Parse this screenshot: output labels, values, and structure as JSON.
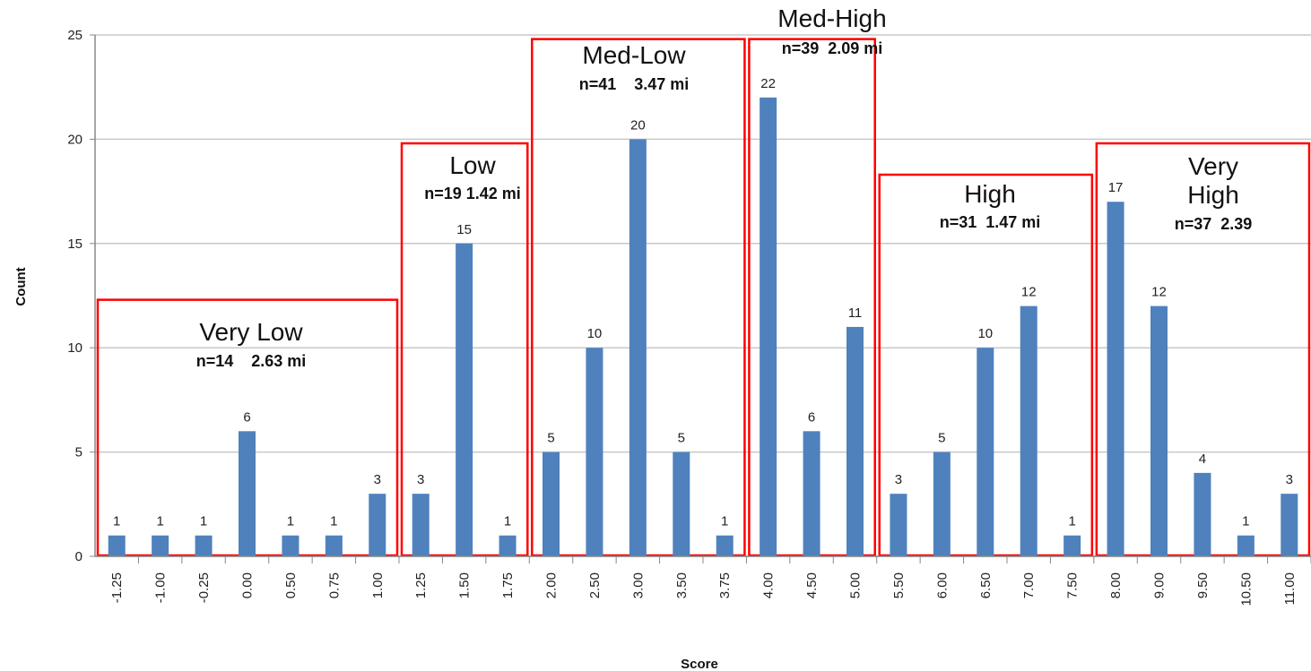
{
  "chart_data": {
    "type": "bar",
    "xlabel": "Score",
    "ylabel": "Count",
    "ylim": [
      0,
      25
    ],
    "yticks": [
      0,
      5,
      10,
      15,
      20,
      25
    ],
    "grid": "horizontal",
    "bar_color": "#4f81bd",
    "group_box_color": "#ff0000",
    "categories": [
      "-1.25",
      "-1.00",
      "-0.25",
      "0.00",
      "0.50",
      "0.75",
      "1.00",
      "1.25",
      "1.50",
      "1.75",
      "2.00",
      "2.50",
      "3.00",
      "3.50",
      "3.75",
      "4.00",
      "4.50",
      "5.00",
      "5.50",
      "6.00",
      "6.50",
      "7.00",
      "7.50",
      "8.00",
      "9.00",
      "9.50",
      "10.50",
      "11.00"
    ],
    "values": [
      1,
      1,
      1,
      6,
      1,
      1,
      3,
      3,
      15,
      1,
      5,
      10,
      20,
      5,
      1,
      22,
      6,
      11,
      3,
      5,
      10,
      12,
      1,
      17,
      12,
      4,
      1,
      3
    ],
    "groups": [
      {
        "title": "Very Low",
        "subtitle": "n=14    2.63 mi",
        "start": 0,
        "end": 6,
        "box_top": 12.3
      },
      {
        "title": "Low",
        "subtitle": "n=19 1.42 mi",
        "start": 7,
        "end": 9,
        "box_top": 19.8
      },
      {
        "title": "Med-Low",
        "subtitle": "n=41    3.47 mi",
        "start": 10,
        "end": 14,
        "box_top": 24.8
      },
      {
        "title": "Med-High",
        "subtitle": "n=39  2.09 mi",
        "start": 15,
        "end": 17,
        "box_top": 24.8
      },
      {
        "title": "High",
        "subtitle": "n=31  1.47 mi",
        "start": 18,
        "end": 22,
        "box_top": 18.3
      },
      {
        "title": "Very High",
        "subtitle": "n=37  2.39",
        "start": 23,
        "end": 27,
        "box_top": 19.8
      }
    ]
  }
}
